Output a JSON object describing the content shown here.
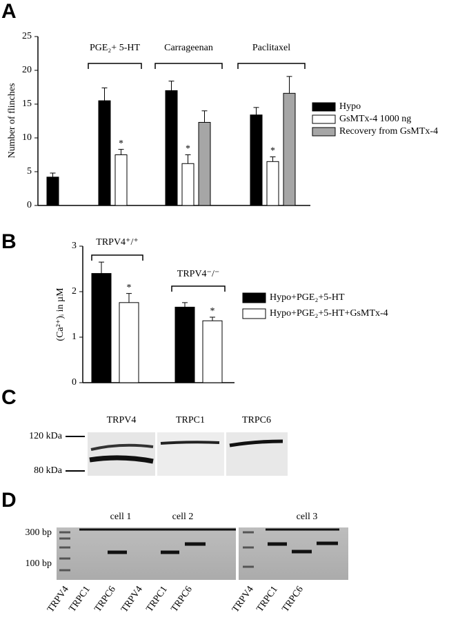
{
  "chart_data": [
    {
      "type": "bar",
      "panel": "A",
      "ylabel": "Number of flinches",
      "categories": [
        null,
        "PGE₂+ 5-HT",
        "Carrageenan",
        "Paclitaxel"
      ],
      "series": [
        {
          "name": "Hypo",
          "color": "#000000",
          "values": [
            4.2,
            15.5,
            17.0,
            13.4
          ],
          "errors": [
            0.6,
            1.9,
            1.4,
            1.1
          ]
        },
        {
          "name": "GsMTx-4 1000 ng",
          "color": "#ffffff",
          "values": [
            null,
            7.5,
            6.2,
            6.5
          ],
          "errors": [
            null,
            0.8,
            1.3,
            0.7
          ],
          "annotations": [
            null,
            "*",
            "*",
            "*"
          ]
        },
        {
          "name": "Recovery from GsMTx-4",
          "color": "#a6a6a6",
          "values": [
            null,
            null,
            12.3,
            16.6
          ],
          "errors": [
            null,
            null,
            1.7,
            2.5
          ]
        }
      ],
      "ylim": [
        0,
        25
      ],
      "yticks": [
        0,
        5,
        10,
        15,
        20,
        25
      ]
    },
    {
      "type": "bar",
      "panel": "B",
      "ylabel": "(Ca²⁺)ᵢ in µM",
      "categories": [
        "TRPV4⁺/⁺",
        "TRPV4⁻/⁻"
      ],
      "series": [
        {
          "name": "Hypo+PGE₂+5-HT",
          "color": "#000000",
          "values": [
            2.4,
            1.66
          ],
          "errors": [
            0.25,
            0.1
          ]
        },
        {
          "name": "Hypo+PGE₂+5-HT+GsMTx-4",
          "color": "#ffffff",
          "values": [
            1.76,
            1.36
          ],
          "errors": [
            0.2,
            0.08
          ],
          "annotations": [
            "*",
            "*"
          ]
        }
      ],
      "ylim": [
        0,
        3
      ],
      "yticks": [
        0,
        1,
        2,
        3
      ]
    }
  ],
  "western": {
    "panel": "C",
    "lanes": [
      "TRPV4",
      "TRPC1",
      "TRPC6"
    ],
    "markers": [
      "120 kDa",
      "80 kDa"
    ]
  },
  "pcr": {
    "panel": "D",
    "cells": [
      "cell 1",
      "cell 2",
      "cell 3"
    ],
    "markers": [
      "300 bp",
      "100 bp"
    ],
    "lanes": [
      "TRPV4",
      "TRPC1",
      "TRPC6",
      "TRPV4",
      "TRPC1",
      "TRPC6",
      "TRPV4",
      "TRPC1",
      "TRPC6"
    ]
  }
}
